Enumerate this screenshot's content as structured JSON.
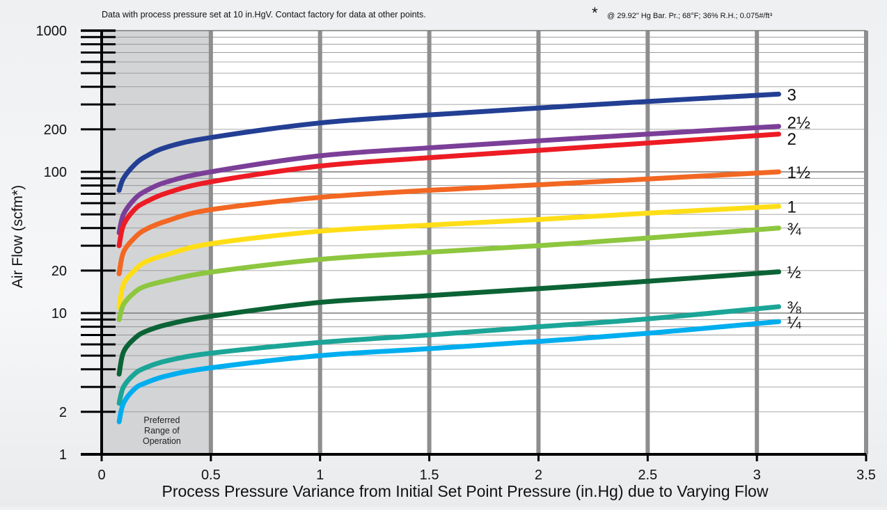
{
  "chart_data": {
    "type": "line",
    "note": "Data with process pressure set at 10 in.HgV. Contact factory for data at other points.",
    "footnote_mark": "*",
    "footnote": "@ 29.92\" Hg Bar. Pr.;  68°F;  36% R.H.;  0.075#/ft³",
    "xlabel": "Process Pressure Variance from Initial Set Point Pressure (in.Hg) due to Varying Flow",
    "ylabel": "Air Flow (scfm*)",
    "xlim": [
      0,
      3.5
    ],
    "ylim": [
      1,
      1000
    ],
    "y_scale": "log",
    "x_ticks": [
      "0",
      "0.5",
      "1",
      "1.5",
      "2",
      "2.5",
      "3",
      "3.5"
    ],
    "y_tick_labels": [
      "1",
      "2",
      "10",
      "20",
      "100",
      "200",
      "1000"
    ],
    "shaded_region": {
      "x": [
        0,
        0.5
      ],
      "label": [
        "Preferred",
        "Range of",
        "Operation"
      ]
    },
    "series": [
      {
        "name": "3",
        "color": "#233f94",
        "x": [
          0.08,
          0.1,
          0.15,
          0.2,
          0.3,
          0.5,
          1,
          1.5,
          2,
          2.5,
          3.1
        ],
        "y": [
          74,
          90,
          112,
          128,
          150,
          175,
          222,
          253,
          283,
          315,
          355
        ]
      },
      {
        "name": "2½",
        "color": "#7b3f98",
        "x": [
          0.08,
          0.1,
          0.15,
          0.2,
          0.3,
          0.5,
          1,
          1.5,
          2,
          2.5,
          3.1
        ],
        "y": [
          37,
          50,
          64,
          73,
          85,
          100,
          130,
          148,
          166,
          185,
          210
        ]
      },
      {
        "name": "2",
        "color": "#ed1c24",
        "x": [
          0.08,
          0.1,
          0.15,
          0.2,
          0.3,
          0.5,
          1,
          1.5,
          2,
          2.5,
          3.1
        ],
        "y": [
          30,
          42,
          54,
          61,
          71,
          85,
          110,
          126,
          142,
          160,
          185
        ]
      },
      {
        "name": "1½",
        "color": "#f26722",
        "x": [
          0.08,
          0.1,
          0.15,
          0.2,
          0.3,
          0.5,
          1,
          1.5,
          2,
          2.5,
          3.1
        ],
        "y": [
          19,
          27,
          34,
          39,
          45,
          54,
          66,
          74,
          81,
          89,
          100
        ]
      },
      {
        "name": "1",
        "color": "#ffde17",
        "x": [
          0.08,
          0.1,
          0.15,
          0.2,
          0.3,
          0.5,
          1,
          1.5,
          2,
          2.5,
          3.1
        ],
        "y": [
          11,
          16,
          20,
          23,
          26,
          31,
          38,
          42,
          46,
          51,
          57
        ]
      },
      {
        "name": "¾",
        "color": "#8dc63f",
        "x": [
          0.08,
          0.1,
          0.15,
          0.2,
          0.3,
          0.5,
          1,
          1.5,
          2,
          2.5,
          3.1
        ],
        "y": [
          9,
          11.5,
          14,
          15.5,
          17,
          19.5,
          24,
          27,
          30,
          34,
          40
        ]
      },
      {
        "name": "½",
        "color": "#0b6335",
        "x": [
          0.08,
          0.1,
          0.15,
          0.2,
          0.3,
          0.5,
          1,
          1.5,
          2,
          2.5,
          3.1
        ],
        "y": [
          3.7,
          5.3,
          6.6,
          7.4,
          8.3,
          9.5,
          11.9,
          13.3,
          14.9,
          16.8,
          19.6
        ]
      },
      {
        "name": "⅜",
        "color": "#1ba597",
        "x": [
          0.08,
          0.1,
          0.15,
          0.2,
          0.3,
          0.5,
          1,
          1.5,
          2,
          2.5,
          3.1
        ],
        "y": [
          2.3,
          3.0,
          3.7,
          4.1,
          4.6,
          5.2,
          6.2,
          7.0,
          8.0,
          9.1,
          11.1
        ]
      },
      {
        "name": "¼",
        "color": "#00aeef",
        "x": [
          0.08,
          0.1,
          0.15,
          0.2,
          0.3,
          0.5,
          1,
          1.5,
          2,
          2.5,
          3.1
        ],
        "y": [
          1.7,
          2.3,
          2.9,
          3.2,
          3.6,
          4.1,
          5.0,
          5.6,
          6.3,
          7.2,
          8.7
        ]
      }
    ]
  }
}
